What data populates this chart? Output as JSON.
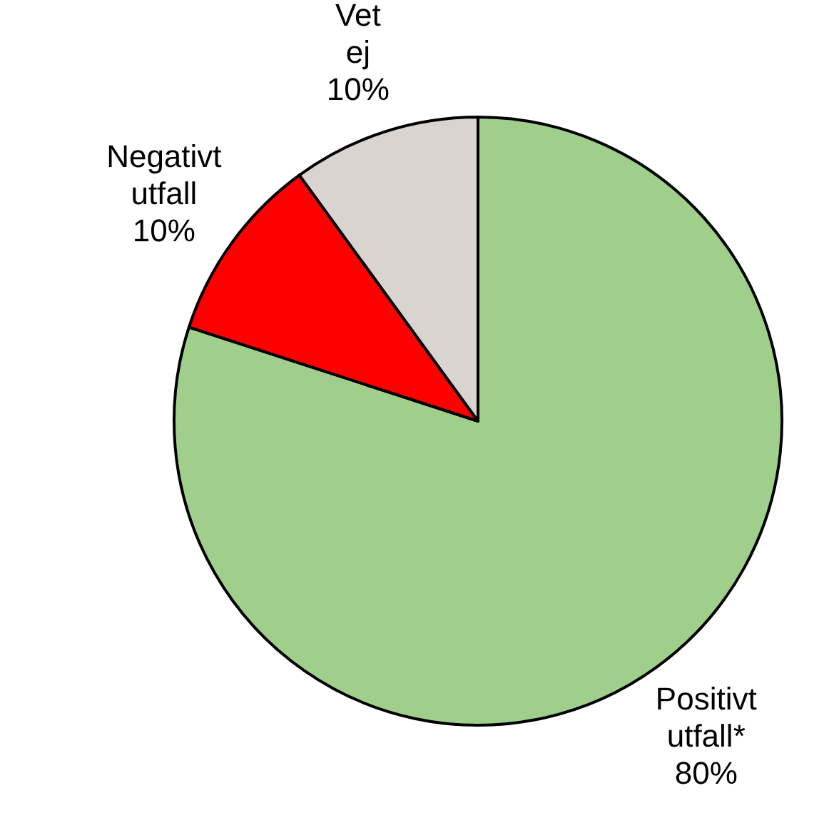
{
  "chart_data": {
    "type": "pie",
    "categories": [
      "Positivt utfall*",
      "Negativt utfall",
      "Vet ej"
    ],
    "values": [
      80,
      10,
      10
    ],
    "value_labels": [
      "80%",
      "10%",
      "10%"
    ],
    "colors": [
      "#a0cf8c",
      "#ff0000",
      "#d9d4cf"
    ]
  }
}
